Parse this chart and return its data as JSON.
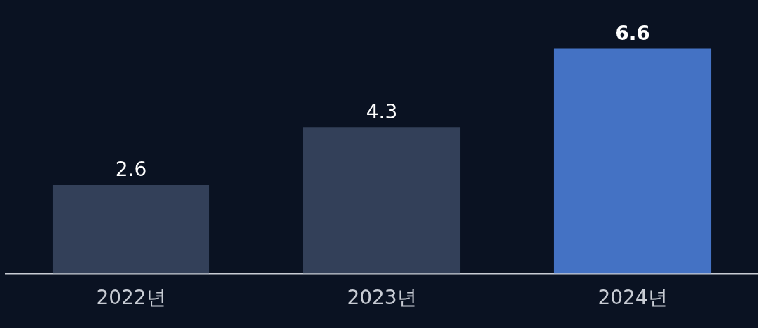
{
  "chart_data": {
    "type": "bar",
    "categories": [
      "2022년",
      "2023년",
      "2024년"
    ],
    "values": [
      2.6,
      4.3,
      6.6
    ],
    "colors": [
      "#334059",
      "#334059",
      "#4472c4"
    ],
    "data_labels": true,
    "legend": false,
    "tick_labels": "x"
  }
}
